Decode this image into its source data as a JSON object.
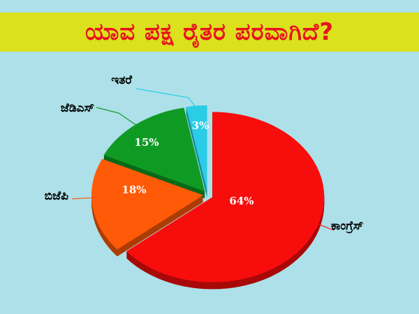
{
  "title": "ಯಾವ ಪಕ್ಷ ರೈತರ ಪರವಾಗಿದೆ?",
  "colors": {
    "background": "#ade0e9",
    "title_bar": "#dbe11d",
    "title_text": "#e8131e"
  },
  "chart_data": {
    "type": "pie",
    "title": "ಯಾವ ಪಕ್ಷ ರೈತರ ಪರವಾಗಿದೆ?",
    "slices": [
      {
        "label": "ಕಾಂಗ್ರೆಸ್",
        "value": 64,
        "display": "64%",
        "color": "#f80d0d"
      },
      {
        "label": "ಬಿಜೆಪಿ",
        "value": 18,
        "display": "18%",
        "color": "#fe5a08"
      },
      {
        "label": "ಜೆಡಿಎಸ್",
        "value": 15,
        "display": "15%",
        "color": "#0f9a24"
      },
      {
        "label": "ಇತರೆ",
        "value": 3,
        "display": "3%",
        "color": "#2acde6"
      }
    ]
  }
}
